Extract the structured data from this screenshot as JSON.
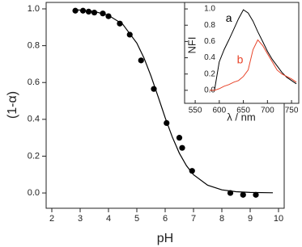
{
  "chart_data": [
    {
      "type": "scatter",
      "xlabel": "pH",
      "ylabel": "(1-α)",
      "color": "#000000",
      "x": [
        2.83,
        3.1,
        3.3,
        3.5,
        3.8,
        4.0,
        4.4,
        4.75,
        5.15,
        5.6,
        6.05,
        6.5,
        6.6,
        6.95,
        8.3,
        8.75,
        9.2
      ],
      "values": [
        0.99,
        0.99,
        0.985,
        0.98,
        0.975,
        0.96,
        0.92,
        0.86,
        0.72,
        0.565,
        0.38,
        0.3,
        0.245,
        0.12,
        0.0,
        -0.01,
        -0.01
      ],
      "fit": {
        "x": [
          2.8,
          3.5,
          4,
          4.5,
          5,
          5.25,
          5.5,
          5.75,
          6,
          6.25,
          6.5,
          6.75,
          7,
          7.5,
          8,
          8.5,
          9,
          9.8
        ],
        "values": [
          0.996,
          0.986,
          0.965,
          0.917,
          0.814,
          0.734,
          0.635,
          0.523,
          0.409,
          0.304,
          0.216,
          0.148,
          0.099,
          0.042,
          0.017,
          0.007,
          0.003,
          0.001
        ]
      },
      "xlim": [
        1.8,
        10.2
      ],
      "ylim": [
        -0.083,
        1.035
      ],
      "xticks": [
        2,
        3,
        4,
        5,
        6,
        7,
        8,
        9,
        10
      ],
      "yticks": [
        {
          "value": 0,
          "label": "0.0"
        },
        0.2,
        0.4,
        0.6,
        0.8,
        {
          "value": 1,
          "label": "1.0"
        }
      ]
    },
    {
      "type": "line",
      "xlabel": "λ / nm",
      "ylabel": "NFI",
      "x": [
        570,
        580,
        590,
        600,
        610,
        620,
        630,
        640,
        650,
        660,
        670,
        680,
        690,
        700,
        710,
        720,
        730,
        740,
        750,
        760
      ],
      "series": [
        {
          "name": "a",
          "color": "#000000",
          "values": [
            null,
            0.0,
            0.0,
            0.35,
            0.5,
            0.62,
            0.75,
            0.88,
            0.99,
            0.95,
            0.85,
            0.72,
            0.6,
            0.48,
            0.38,
            0.3,
            0.22,
            0.16,
            0.12,
            0.08
          ]
        },
        {
          "name": "b",
          "color": "#e8442a",
          "values": [
            null,
            0.0,
            0.0,
            0.02,
            0.05,
            0.07,
            0.1,
            0.12,
            0.17,
            0.25,
            0.5,
            0.62,
            0.55,
            0.45,
            0.35,
            0.25,
            0.2,
            0.17,
            0.14,
            0.1
          ]
        }
      ],
      "xlim": [
        528,
        765
      ],
      "ylim": [
        -0.16,
        1.08
      ],
      "xticks": [
        550,
        600,
        650,
        700,
        750
      ],
      "yticks": [
        {
          "value": 0,
          "label": "0.0"
        },
        0.2,
        0.4,
        0.6,
        0.8,
        {
          "value": 1,
          "label": "1.0"
        }
      ]
    }
  ]
}
